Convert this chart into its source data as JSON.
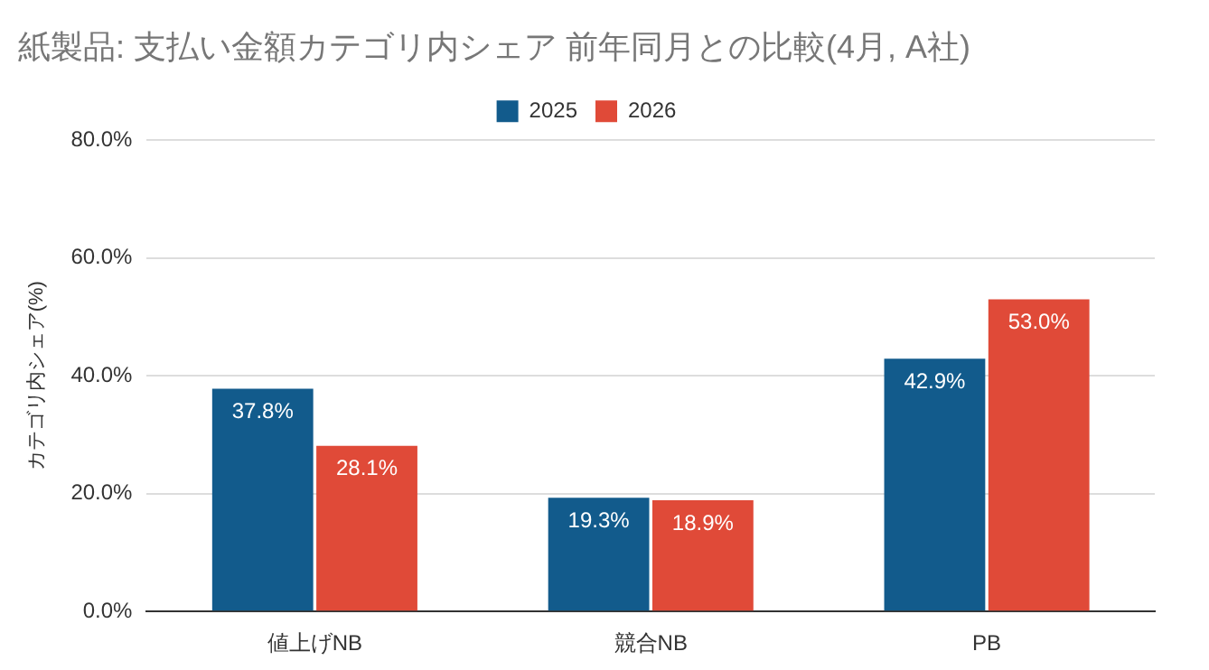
{
  "chart_data": {
    "type": "bar",
    "title": "紙製品: 支払い金額カテゴリ内シェア 前年同月との比較(4月, A社)",
    "ylabel": "カテゴリ内シェア(%)",
    "categories": [
      "値上げNB",
      "競合NB",
      "PB"
    ],
    "series": [
      {
        "name": "2025",
        "color": "#125b8c",
        "values": [
          37.8,
          19.3,
          42.9
        ],
        "value_labels": [
          "37.8%",
          "19.3%",
          "42.9%"
        ]
      },
      {
        "name": "2026",
        "color": "#e04a38",
        "values": [
          28.1,
          18.9,
          53.0
        ],
        "value_labels": [
          "28.1%",
          "18.9%",
          "53.0%"
        ]
      }
    ],
    "ylim": [
      0,
      80
    ],
    "yticks": [
      {
        "value": 0,
        "label": "0.0%"
      },
      {
        "value": 20,
        "label": "20.0%"
      },
      {
        "value": 40,
        "label": "40.0%"
      },
      {
        "value": 60,
        "label": "60.0%"
      },
      {
        "value": 80,
        "label": "80.0%"
      }
    ],
    "grid": "y",
    "legend": "top"
  }
}
